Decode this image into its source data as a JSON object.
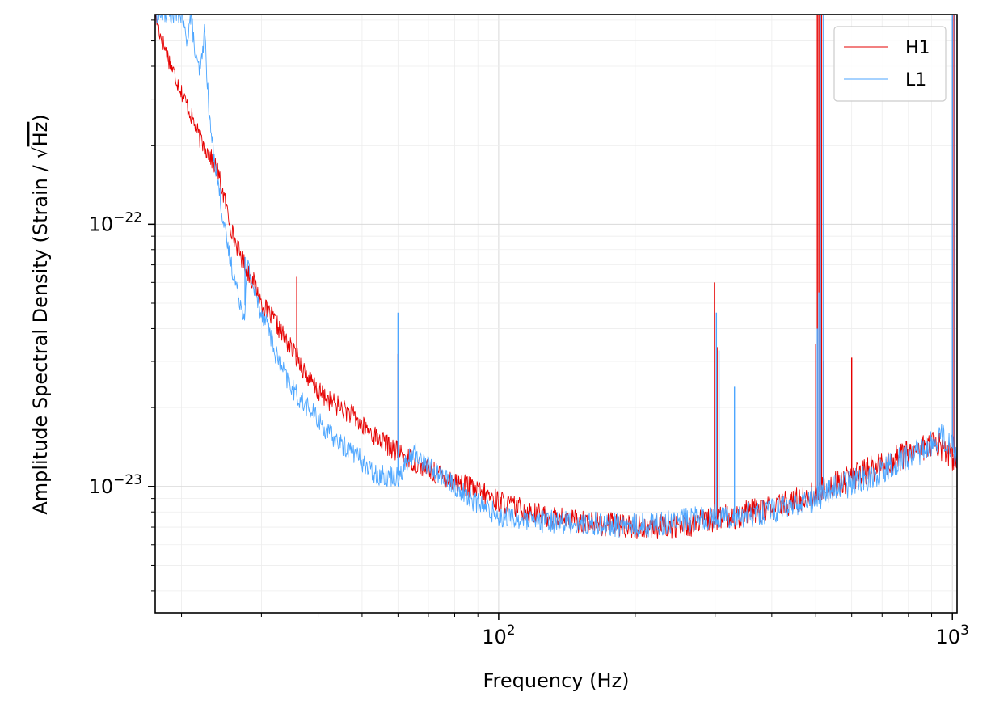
{
  "chart_data": {
    "type": "line",
    "title": "",
    "xlabel": "Frequency (Hz)",
    "ylabel_prefix": "Amplitude Spectral Density (Strain / ",
    "ylabel_radical": "Hz",
    "ylabel_suffix": ")",
    "xscale": "log",
    "yscale": "log",
    "xlim": [
      17.5,
      1024
    ],
    "ylim": [
      3.3e-24,
      6.3e-22
    ],
    "grid": true,
    "legend_position": "top-right",
    "x_major_ticks": [
      {
        "value": 100,
        "base": "10",
        "exp": "2"
      },
      {
        "value": 1000,
        "base": "10",
        "exp": "3"
      }
    ],
    "y_major_ticks": [
      {
        "value": 1e-23,
        "base": "10",
        "exp": "−23"
      },
      {
        "value": 1e-22,
        "base": "10",
        "exp": "−22"
      }
    ],
    "series": [
      {
        "name": "H1",
        "color": "#e60000",
        "x": [
          17.5,
          18,
          19,
          20,
          21,
          22,
          23,
          24,
          25,
          26,
          27,
          28,
          29,
          30,
          32,
          34,
          36,
          38,
          40,
          42,
          45,
          48,
          50,
          55,
          60,
          65,
          70,
          80,
          90,
          100,
          110,
          120,
          130,
          150,
          170,
          190,
          200,
          220,
          250,
          280,
          300,
          330,
          350,
          400,
          450,
          480,
          500,
          520,
          550,
          600,
          650,
          700,
          800,
          900,
          950,
          1000,
          1024
        ],
        "y": [
          6.3e-22,
          5.2e-22,
          4e-22,
          3.2e-22,
          2.6e-22,
          2.1e-22,
          1.85e-22,
          1.6e-22,
          1.2e-22,
          9e-23,
          7.6e-23,
          6.6e-23,
          5.9e-23,
          5e-23,
          4.3e-23,
          3.6e-23,
          3.1e-23,
          2.6e-23,
          2.3e-23,
          2.15e-23,
          2e-23,
          1.85e-23,
          1.7e-23,
          1.5e-23,
          1.35e-23,
          1.25e-23,
          1.15e-23,
          1.05e-23,
          9.6e-24,
          8.8e-24,
          8.3e-24,
          7.9e-24,
          7.6e-24,
          7.4e-24,
          7.2e-24,
          7.1e-24,
          7e-24,
          7e-24,
          7.1e-24,
          7.3e-24,
          7.5e-24,
          7.7e-24,
          7.9e-24,
          8.3e-24,
          8.8e-24,
          9.2e-24,
          9.4e-24,
          9.8e-24,
          1.02e-23,
          1.08e-23,
          1.15e-23,
          1.2e-23,
          1.35e-23,
          1.45e-23,
          1.4e-23,
          1.3e-23,
          1.25e-23
        ],
        "spikes": [
          {
            "x": 35.9,
            "y": 6.3e-23
          },
          {
            "x": 60,
            "y": 3.2e-23
          },
          {
            "x": 299,
            "y": 6e-23
          },
          {
            "x": 303,
            "y": 3.4e-23
          },
          {
            "x": 500,
            "y": 3.5e-23
          },
          {
            "x": 504,
            "y": 6.3e-22
          },
          {
            "x": 508,
            "y": 6.3e-22
          },
          {
            "x": 515,
            "y": 6.3e-22
          },
          {
            "x": 520,
            "y": 3e-23
          },
          {
            "x": 600,
            "y": 3.1e-23
          },
          {
            "x": 1000,
            "y": 6.3e-22
          },
          {
            "x": 1008,
            "y": 6.3e-22
          }
        ]
      },
      {
        "name": "L1",
        "color": "#4da6ff",
        "x": [
          17.5,
          18,
          19,
          20,
          20.5,
          21,
          21.5,
          22,
          22.5,
          23,
          23.5,
          24,
          25,
          26,
          27,
          27.5,
          28,
          29,
          30,
          31,
          32,
          34,
          36,
          38,
          40,
          42,
          45,
          48,
          50,
          52,
          55,
          60,
          65,
          70,
          80,
          90,
          100,
          110,
          120,
          130,
          150,
          170,
          190,
          200,
          220,
          250,
          280,
          300,
          330,
          350,
          400,
          450,
          480,
          500,
          520,
          550,
          600,
          650,
          700,
          800,
          900,
          950,
          1000,
          1024
        ],
        "y": [
          6.3e-22,
          6.3e-22,
          6.3e-22,
          6.3e-22,
          5e-22,
          6.3e-22,
          4.2e-22,
          3.8e-22,
          5.5e-22,
          2.6e-22,
          1.9e-22,
          1.5e-22,
          9e-23,
          6.5e-23,
          5e-23,
          4.5e-23,
          7e-23,
          5.5e-23,
          4.6e-23,
          4.2e-23,
          3.3e-23,
          2.6e-23,
          2.2e-23,
          2e-23,
          1.8e-23,
          1.6e-23,
          1.45e-23,
          1.35e-23,
          1.25e-23,
          1.15e-23,
          1.1e-23,
          1.1e-23,
          1.35e-23,
          1.2e-23,
          1e-23,
          8.6e-24,
          7.8e-24,
          7.5e-24,
          7.3e-24,
          7.4e-24,
          7.2e-24,
          7.2e-24,
          7.1e-24,
          7.1e-24,
          7.2e-24,
          7.4e-24,
          7.6e-24,
          7.7e-24,
          7.8e-24,
          7.8e-24,
          8.1e-24,
          8.5e-24,
          8.8e-24,
          9e-24,
          9.4e-24,
          9.8e-24,
          1.03e-23,
          1.08e-23,
          1.15e-23,
          1.3e-23,
          1.45e-23,
          1.55e-23,
          1.4e-23,
          1.22e-23
        ],
        "spikes": [
          {
            "x": 27.6,
            "y": 7.5e-23
          },
          {
            "x": 60,
            "y": 4.6e-23
          },
          {
            "x": 302,
            "y": 4.6e-23
          },
          {
            "x": 306,
            "y": 3.3e-23
          },
          {
            "x": 331,
            "y": 2.4e-23
          },
          {
            "x": 504,
            "y": 4e-23
          },
          {
            "x": 508,
            "y": 5.5e-23
          },
          {
            "x": 512,
            "y": 6.3e-22
          },
          {
            "x": 520,
            "y": 6.3e-22
          },
          {
            "x": 1000,
            "y": 6.3e-22
          },
          {
            "x": 1012,
            "y": 6.3e-22
          }
        ]
      }
    ]
  }
}
